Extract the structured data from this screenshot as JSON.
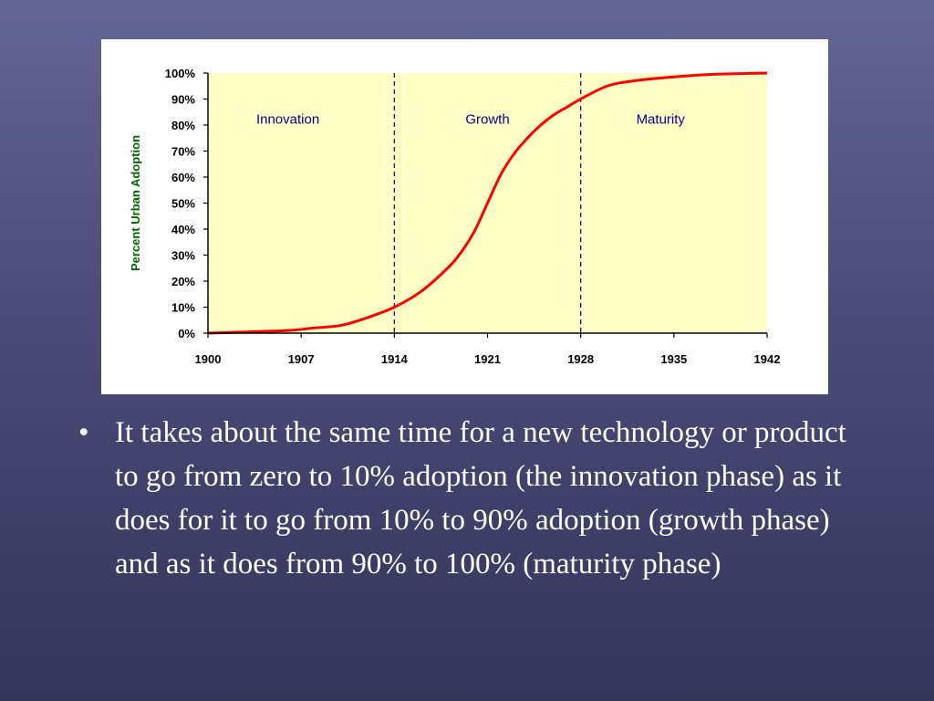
{
  "slide": {
    "bullet_symbol": "•",
    "bullet_text": "It takes about the same time for a new technology or product to go from zero to 10% adoption (the innovation phase) as it does for it to go from 10% to 90% adoption (growth phase) and as it does from 90% to 100% (maturity phase)"
  },
  "colors": {
    "background_top": "#636595",
    "background_bottom": "#34355a",
    "plot_fill": "#ffffc6",
    "curve": "#ff0000",
    "ylabel": "#006400",
    "phase_label": "#00008b",
    "divider": "#1a1a6e"
  },
  "chart_data": {
    "type": "line",
    "title": "",
    "xlabel": "",
    "ylabel": "Percent Urban Adoption",
    "xlim": [
      1900,
      1942
    ],
    "ylim": [
      0,
      100
    ],
    "x_ticks": [
      1900,
      1907,
      1914,
      1921,
      1928,
      1935,
      1942
    ],
    "y_ticks": [
      "0%",
      "10%",
      "20%",
      "30%",
      "40%",
      "50%",
      "60%",
      "70%",
      "80%",
      "90%",
      "100%"
    ],
    "grid": false,
    "phase_dividers": [
      1914,
      1928
    ],
    "phase_labels": [
      {
        "text": "Innovation",
        "x": 1906
      },
      {
        "text": "Growth",
        "x": 1921
      },
      {
        "text": "Maturity",
        "x": 1934
      }
    ],
    "series": [
      {
        "x": [
          1900,
          1903,
          1906,
          1908,
          1910,
          1912,
          1914,
          1916,
          1918,
          1919,
          1920,
          1921,
          1922,
          1923,
          1924,
          1925,
          1926,
          1927,
          1928,
          1930,
          1932,
          1935,
          1938,
          1942
        ],
        "y": [
          0,
          0.5,
          1,
          2,
          3,
          6,
          10,
          16,
          25,
          31,
          39,
          50,
          61,
          69,
          75,
          80,
          84,
          87,
          90,
          95,
          97,
          98.5,
          99.5,
          100
        ]
      }
    ]
  }
}
